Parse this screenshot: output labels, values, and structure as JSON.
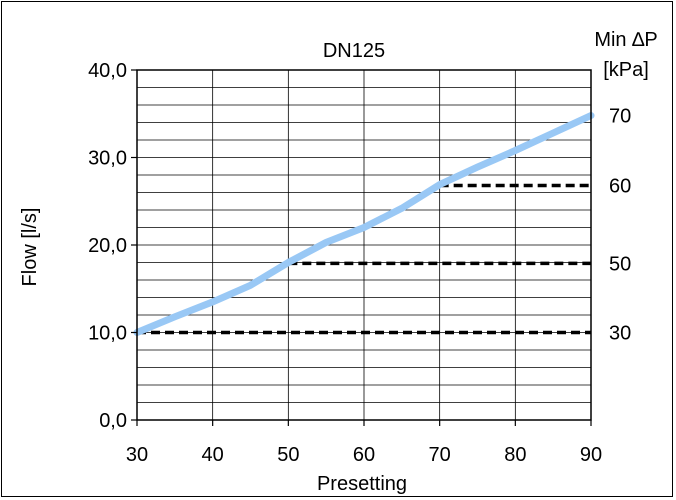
{
  "chart_data": {
    "type": "line",
    "title": "DN125",
    "xlabel": "Presetting",
    "ylabel": "Flow [l/s]",
    "y2label_line1": "Min ∆P",
    "y2label_line2": "[kPa]",
    "xlim": [
      30,
      90
    ],
    "ylim": [
      0,
      40
    ],
    "x_ticks": [
      30,
      40,
      50,
      60,
      70,
      80,
      90
    ],
    "x_tick_labels": [
      "30",
      "40",
      "50",
      "60",
      "70",
      "80",
      "90"
    ],
    "y_ticks": [
      0,
      10,
      20,
      30,
      40
    ],
    "y_tick_labels": [
      "0,0",
      "10,0",
      "20,0",
      "30,0",
      "40,0"
    ],
    "y_minor_step": 2,
    "grid": true,
    "flow_curve": {
      "color": "#99c8f5",
      "x": [
        30,
        35,
        40,
        45,
        50,
        55,
        60,
        65,
        70,
        75,
        80,
        85,
        90
      ],
      "y": [
        10.0,
        11.8,
        13.5,
        15.4,
        18.0,
        20.3,
        22.0,
        24.2,
        26.9,
        28.9,
        30.8,
        32.8,
        34.8
      ]
    },
    "min_dp_lines": [
      {
        "kpa_label": "30",
        "x_start": 30,
        "x_end": 90,
        "y": 10.0
      },
      {
        "kpa_label": "50",
        "x_start": 50,
        "x_end": 90,
        "y": 17.9
      },
      {
        "kpa_label": "60",
        "x_start": 70,
        "x_end": 90,
        "y": 26.8
      }
    ],
    "right_axis_labels": [
      {
        "text": "70",
        "y": 34.8
      },
      {
        "text": "60",
        "y": 26.8
      },
      {
        "text": "50",
        "y": 17.9
      },
      {
        "text": "30",
        "y": 10.0
      }
    ]
  }
}
